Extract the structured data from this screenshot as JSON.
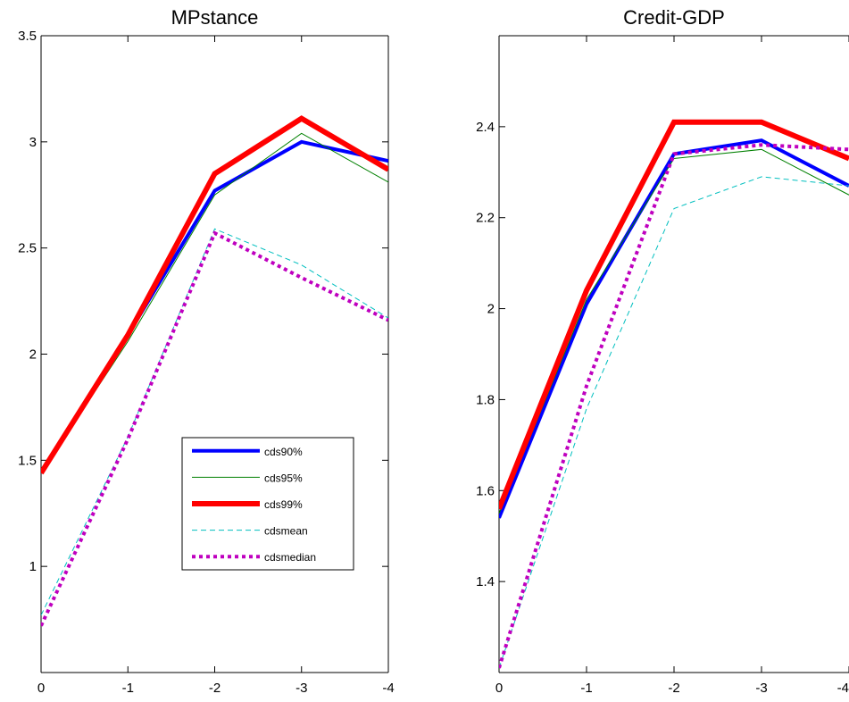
{
  "chart_data": [
    {
      "type": "line",
      "title": "MPstance",
      "xlabel": "",
      "ylabel": "",
      "x": [
        0,
        -1,
        -2,
        -3,
        -4
      ],
      "xticks": [
        "0",
        "-1",
        "-2",
        "-3",
        "-4"
      ],
      "ylim": [
        0.5,
        3.5
      ],
      "yticks": [
        1,
        1.5,
        2,
        2.5,
        3,
        3.5
      ],
      "ytick_labels": [
        "1",
        "1.5",
        "2",
        "2.5",
        "3",
        "3.5"
      ],
      "grid": false,
      "legend_placement": "lower-right",
      "series": [
        {
          "name": "cds90%",
          "values": [
            1.44,
            2.09,
            2.77,
            3.0,
            2.91
          ],
          "color": "#0000ff",
          "style": "solid",
          "width": "thick"
        },
        {
          "name": "cds95%",
          "values": [
            1.44,
            2.06,
            2.75,
            3.04,
            2.81
          ],
          "color": "#008000",
          "style": "solid",
          "width": "thin"
        },
        {
          "name": "cds99%",
          "values": [
            1.44,
            2.09,
            2.85,
            3.11,
            2.87
          ],
          "color": "#ff0000",
          "style": "solid",
          "width": "thicker"
        },
        {
          "name": "cdsmean",
          "values": [
            0.77,
            1.61,
            2.59,
            2.42,
            2.17
          ],
          "color": "#00bfbf",
          "style": "dashed",
          "width": "thin"
        },
        {
          "name": "cdsmedian",
          "values": [
            0.72,
            1.6,
            2.57,
            2.36,
            2.16
          ],
          "color": "#bf00bf",
          "style": "dotted",
          "width": "thick"
        }
      ]
    },
    {
      "type": "line",
      "title": "Credit-GDP",
      "xlabel": "",
      "ylabel": "",
      "x": [
        0,
        -1,
        -2,
        -3,
        -4
      ],
      "xticks": [
        "0",
        "-1",
        "-2",
        "-3",
        "-4"
      ],
      "ylim": [
        1.2,
        2.6
      ],
      "yticks": [
        1.4,
        1.6,
        1.8,
        2,
        2.2,
        2.4
      ],
      "ytick_labels": [
        "1.4",
        "1.6",
        "1.8",
        "2",
        "2.2",
        "2.4"
      ],
      "grid": false,
      "legend_placement": "",
      "series": [
        {
          "values": [
            1.54,
            2.01,
            2.34,
            2.37,
            2.27
          ],
          "color": "#0000ff",
          "style": "solid",
          "width": "thick"
        },
        {
          "values": [
            1.55,
            2.02,
            2.33,
            2.35,
            2.25
          ],
          "color": "#008000",
          "style": "solid",
          "width": "thin"
        },
        {
          "values": [
            1.56,
            2.04,
            2.41,
            2.41,
            2.33
          ],
          "color": "#ff0000",
          "style": "solid",
          "width": "thicker"
        },
        {
          "values": [
            1.21,
            1.78,
            2.22,
            2.29,
            2.27
          ],
          "color": "#00bfbf",
          "style": "dashed",
          "width": "thin"
        },
        {
          "values": [
            1.21,
            1.83,
            2.34,
            2.36,
            2.35
          ],
          "color": "#bf00bf",
          "style": "dotted",
          "width": "thick"
        }
      ]
    }
  ]
}
